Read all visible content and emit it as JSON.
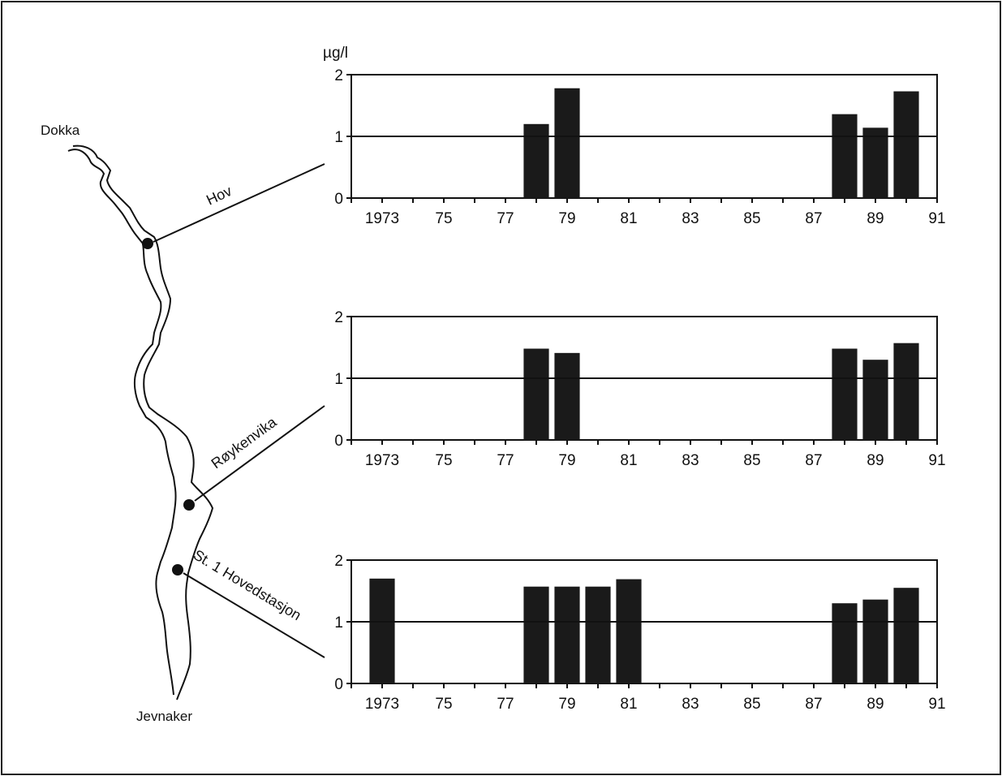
{
  "unit_label": "µg/l",
  "map": {
    "places": {
      "north": "Dokka",
      "south": "Jevnaker"
    },
    "stations": [
      "Hov",
      "Røykenvika",
      "St. 1 Hovedstasjon"
    ]
  },
  "chart_data": [
    {
      "type": "bar",
      "title": "",
      "station": "Hov",
      "ylabel": "µg/l",
      "ylim": [
        0,
        2
      ],
      "yticks": [
        0,
        1,
        2
      ],
      "x_years": [
        1973,
        1974,
        1975,
        1976,
        1977,
        1978,
        1979,
        1980,
        1981,
        1982,
        1983,
        1984,
        1985,
        1986,
        1987,
        1988,
        1989,
        1990
      ],
      "xtick_labels": [
        "1973",
        "75",
        "77",
        "79",
        "81",
        "83",
        "85",
        "87",
        "89",
        "91"
      ],
      "values": [
        null,
        null,
        null,
        null,
        null,
        1.2,
        1.78,
        null,
        null,
        null,
        null,
        null,
        null,
        null,
        null,
        1.36,
        1.14,
        1.73
      ],
      "reference_line": 1,
      "bar_color": "#1a1a1a"
    },
    {
      "type": "bar",
      "title": "",
      "station": "Røykenvika",
      "ylabel": "µg/l",
      "ylim": [
        0,
        2
      ],
      "yticks": [
        0,
        1,
        2
      ],
      "x_years": [
        1973,
        1974,
        1975,
        1976,
        1977,
        1978,
        1979,
        1980,
        1981,
        1982,
        1983,
        1984,
        1985,
        1986,
        1987,
        1988,
        1989,
        1990
      ],
      "xtick_labels": [
        "1973",
        "75",
        "77",
        "79",
        "81",
        "83",
        "85",
        "87",
        "89",
        "91"
      ],
      "values": [
        null,
        null,
        null,
        null,
        null,
        1.48,
        1.41,
        null,
        null,
        null,
        null,
        null,
        null,
        null,
        null,
        1.48,
        1.3,
        1.57
      ],
      "reference_line": 1,
      "bar_color": "#1a1a1a"
    },
    {
      "type": "bar",
      "title": "",
      "station": "St. 1 Hovedstasjon",
      "ylabel": "µg/l",
      "ylim": [
        0,
        2
      ],
      "yticks": [
        0,
        1,
        2
      ],
      "x_years": [
        1973,
        1974,
        1975,
        1976,
        1977,
        1978,
        1979,
        1980,
        1981,
        1982,
        1983,
        1984,
        1985,
        1986,
        1987,
        1988,
        1989,
        1990
      ],
      "xtick_labels": [
        "1973",
        "75",
        "77",
        "79",
        "81",
        "83",
        "85",
        "87",
        "89",
        "91"
      ],
      "values": [
        1.7,
        null,
        null,
        null,
        null,
        1.57,
        1.57,
        1.57,
        1.69,
        null,
        null,
        null,
        null,
        null,
        null,
        1.3,
        1.36,
        1.55
      ],
      "reference_line": 1,
      "bar_color": "#1a1a1a"
    }
  ]
}
